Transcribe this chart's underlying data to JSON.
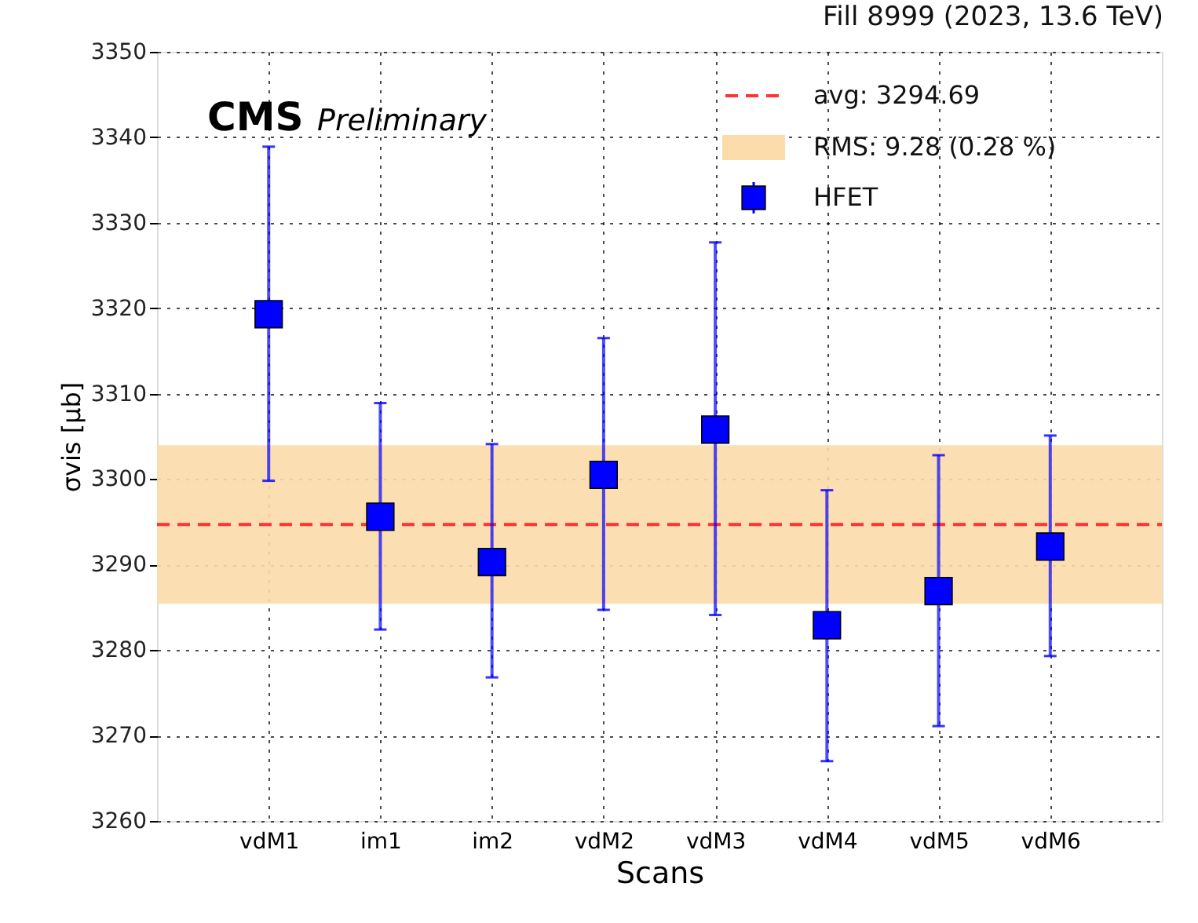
{
  "chart_data": {
    "type": "scatter",
    "title": "Fill 8999 (2023, 13.6 TeV)",
    "xlabel": "Scans",
    "ylabel": "σvis [μb]",
    "annotations": [
      "CMS",
      "Preliminary"
    ],
    "categories": [
      "vdM1",
      "im1",
      "im2",
      "vdM2",
      "vdM3",
      "vdM4",
      "vdM5",
      "vdM6"
    ],
    "series": [
      {
        "name": "HFET",
        "color": "#0000ff",
        "values": [
          3319.3,
          3295.6,
          3290.3,
          3300.5,
          3305.8,
          3282.9,
          3286.9,
          3292.1
        ],
        "errors": [
          [
            3299.8,
            3338.9
          ],
          [
            3282.4,
            3308.9
          ],
          [
            3276.8,
            3304.1
          ],
          [
            3284.7,
            3316.5
          ],
          [
            3284.1,
            3327.7
          ],
          [
            3267.0,
            3298.7
          ],
          [
            3271.1,
            3302.8
          ],
          [
            3279.3,
            3305.1
          ]
        ]
      }
    ],
    "ref_lines": [
      {
        "axis": "y",
        "value": 3294.69,
        "label": "avg: 3294.69",
        "color": "#ff3333",
        "line_style": "dashed"
      }
    ],
    "bands": [
      {
        "axis": "y",
        "from": 3285.41,
        "to": 3303.97,
        "label": "RMS: 9.28 (0.28 %)",
        "color": "#fbdcaa"
      }
    ],
    "ylim": [
      3260,
      3350
    ],
    "yticks": [
      3260,
      3270,
      3280,
      3290,
      3300,
      3310,
      3320,
      3330,
      3340,
      3350
    ],
    "grid": true,
    "legend": "top right",
    "marker": "square"
  }
}
